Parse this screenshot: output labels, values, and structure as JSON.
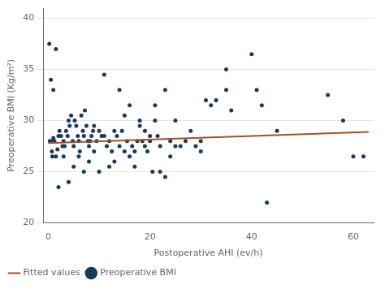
{
  "chart_data": {
    "type": "scatter",
    "x_label": "Postoperative AHI (ev/h)",
    "y_label": "Preoperative BMI (Kg/m²)",
    "xlim": [
      -1,
      64
    ],
    "ylim": [
      20,
      41
    ],
    "xticks": [
      0,
      20,
      40,
      60
    ],
    "yticks": [
      20,
      25,
      30,
      35,
      40
    ],
    "grid": "y",
    "legend": "bottom",
    "series": [
      {
        "name": "Preoperative BMI",
        "type": "scatter",
        "color": "#1a3a5c",
        "marker": "circle",
        "x": [
          0.2,
          0.3,
          0.5,
          0.7,
          0.8,
          1.0,
          1.2,
          1.5,
          1.8,
          2.0,
          2.2,
          2.5,
          2.8,
          3.0,
          3.2,
          3.5,
          3.8,
          4.0,
          4.2,
          4.5,
          4.8,
          5.0,
          5.2,
          5.5,
          5.8,
          6.0,
          6.2,
          6.5,
          6.8,
          7.0,
          7.2,
          7.5,
          7.8,
          8.0,
          8.2,
          8.5,
          8.8,
          9.0,
          9.5,
          10.0,
          10.5,
          11.0,
          11.5,
          12.0,
          12.5,
          13.0,
          13.5,
          14.0,
          14.5,
          15.0,
          15.5,
          16.0,
          16.5,
          17.0,
          17.5,
          18.0,
          18.5,
          19.0,
          19.5,
          20.0,
          20.5,
          21.0,
          21.5,
          22.0,
          23.0,
          24.0,
          25.0,
          26.0,
          27.0,
          28.0,
          29.0,
          30.0,
          31.0,
          32.0,
          33.0,
          35.0,
          36.0,
          40.0,
          41.0,
          42.0,
          43.0,
          45.0,
          55.0,
          58.0,
          60.0,
          62.0,
          0.5,
          1.0,
          1.5,
          2.0,
          3.0,
          4.0,
          5.0,
          6.0,
          7.0,
          8.0,
          9.0,
          10.0,
          11.0,
          12.0,
          13.0,
          14.0,
          15.0,
          16.0,
          17.0,
          18.0,
          19.0,
          20.0,
          21.0,
          22.0,
          23.0,
          24.0,
          25.0,
          30.0,
          35.0
        ],
        "values": [
          37.5,
          28.0,
          28.0,
          27.0,
          26.5,
          28.3,
          28.0,
          26.5,
          27.2,
          28.5,
          29.0,
          28.5,
          27.5,
          28.0,
          27.5,
          29.0,
          28.5,
          30.0,
          29.5,
          30.5,
          28.0,
          27.5,
          30.0,
          29.5,
          28.5,
          28.0,
          27.0,
          30.5,
          29.0,
          28.5,
          31.0,
          29.5,
          28.0,
          27.5,
          28.0,
          28.5,
          29.0,
          29.5,
          28.0,
          29.0,
          28.5,
          34.5,
          27.5,
          28.0,
          27.0,
          29.0,
          28.5,
          33.0,
          29.0,
          30.5,
          28.0,
          31.5,
          27.5,
          27.0,
          28.0,
          29.5,
          28.0,
          27.5,
          27.0,
          28.5,
          25.0,
          31.5,
          28.5,
          27.5,
          33.0,
          28.0,
          30.0,
          27.5,
          28.0,
          29.0,
          27.5,
          27.0,
          32.0,
          31.5,
          32.0,
          35.0,
          31.0,
          36.5,
          33.0,
          31.5,
          22.0,
          29.0,
          32.5,
          30.0,
          26.5,
          26.5,
          34.0,
          33.0,
          37.0,
          23.5,
          26.5,
          24.0,
          25.5,
          26.5,
          25.0,
          26.0,
          27.0,
          25.0,
          28.5,
          25.5,
          26.0,
          27.5,
          27.0,
          26.5,
          25.5,
          30.0,
          29.0,
          28.0,
          30.0,
          25.0,
          24.5,
          26.5,
          27.5,
          28.0,
          33.0
        ]
      },
      {
        "name": "Fitted values",
        "type": "line",
        "color": "#a0522d",
        "line_style": "solid",
        "x": [
          0,
          63
        ],
        "values": [
          27.8,
          28.9
        ]
      }
    ]
  }
}
